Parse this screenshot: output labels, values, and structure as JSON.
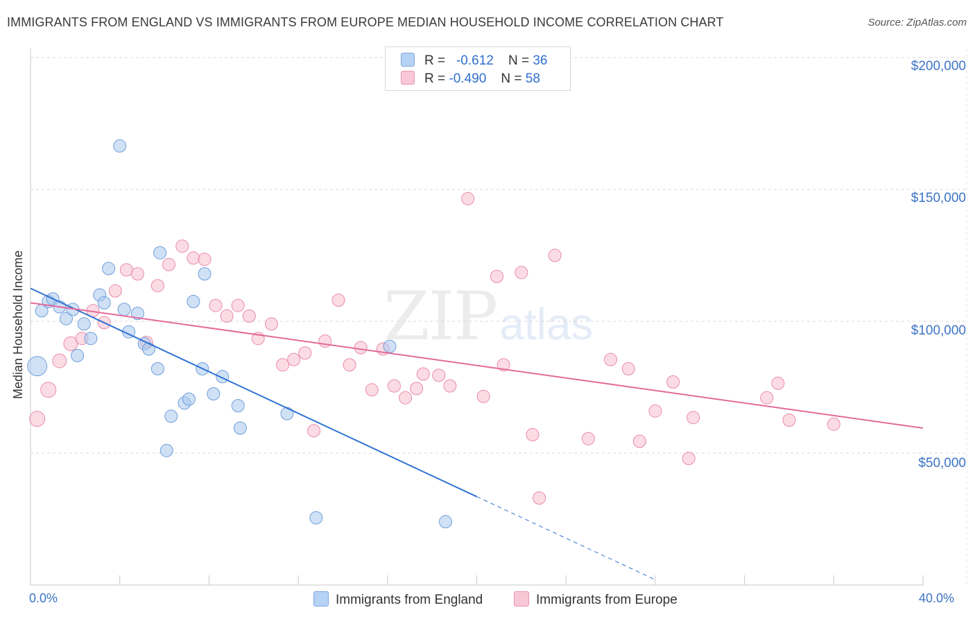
{
  "chart_data": {
    "type": "scatter",
    "title": "IMMIGRANTS FROM ENGLAND VS IMMIGRANTS FROM EUROPE MEDIAN HOUSEHOLD INCOME CORRELATION CHART",
    "source": "Source: ZipAtlas.com",
    "ylabel": "Median Household Income",
    "xlim": [
      0,
      40
    ],
    "ylim": [
      0,
      210000
    ],
    "x_ticks": [
      "0.0%",
      "40.0%"
    ],
    "y_ticks": [
      {
        "value": 50000,
        "label": "$50,000"
      },
      {
        "value": 100000,
        "label": "$100,000"
      },
      {
        "value": 150000,
        "label": "$150,000"
      },
      {
        "value": 200000,
        "label": "$200,000"
      }
    ],
    "watermark": {
      "zip": "ZIP",
      "atlas": "atlas"
    },
    "legend": [
      {
        "r_label": "R =",
        "r_value": "-0.612",
        "n_label": "N =",
        "n_value": "36"
      },
      {
        "r_label": "R =",
        "r_value": "-0.490",
        "n_label": "N =",
        "n_value": "58"
      }
    ],
    "series": [
      {
        "name": "Immigrants from England",
        "color": "#a9c8ef",
        "stroke": "#6f9ed9",
        "trend_color": "#2e72d2",
        "trend": {
          "x0": 0.0,
          "y0": 112500,
          "x1": 20.0,
          "y1": 33500,
          "dash_to_x": 28.0,
          "dash_to_y": 2000
        },
        "points": [
          [
            0.3,
            83000,
            14
          ],
          [
            0.5,
            104000,
            9
          ],
          [
            0.8,
            107500,
            9
          ],
          [
            1.0,
            108500,
            9
          ],
          [
            1.3,
            105500,
            9
          ],
          [
            1.6,
            101000,
            9
          ],
          [
            1.9,
            104500,
            9
          ],
          [
            2.1,
            87000,
            9
          ],
          [
            2.4,
            99000,
            9
          ],
          [
            2.7,
            93500,
            9
          ],
          [
            3.1,
            110000,
            9
          ],
          [
            3.3,
            107000,
            9
          ],
          [
            3.5,
            120000,
            9
          ],
          [
            4.0,
            166500,
            9
          ],
          [
            4.2,
            104500,
            9
          ],
          [
            4.4,
            96000,
            9
          ],
          [
            4.8,
            103000,
            9
          ],
          [
            5.1,
            91500,
            9
          ],
          [
            5.3,
            89500,
            9
          ],
          [
            5.7,
            82000,
            9
          ],
          [
            5.8,
            126000,
            9
          ],
          [
            6.1,
            51000,
            9
          ],
          [
            6.3,
            64000,
            9
          ],
          [
            6.9,
            69000,
            9
          ],
          [
            7.1,
            70500,
            9
          ],
          [
            7.3,
            107500,
            9
          ],
          [
            7.7,
            82000,
            9
          ],
          [
            7.8,
            118000,
            9
          ],
          [
            8.2,
            72500,
            9
          ],
          [
            8.6,
            79000,
            9
          ],
          [
            9.3,
            68000,
            9
          ],
          [
            9.4,
            59500,
            9
          ],
          [
            11.5,
            65000,
            9
          ],
          [
            12.8,
            25500,
            9
          ],
          [
            16.1,
            90500,
            9
          ],
          [
            18.6,
            24000,
            9
          ]
        ]
      },
      {
        "name": "Immigrants from Europe",
        "color": "#f7bfd0",
        "stroke": "#e98aaa",
        "trend_color": "#e4699a",
        "trend": {
          "x0": 0.0,
          "y0": 107000,
          "x1": 40.0,
          "y1": 59500
        },
        "points": [
          [
            0.3,
            63000,
            11
          ],
          [
            0.8,
            74000,
            11
          ],
          [
            1.3,
            85000,
            10
          ],
          [
            1.8,
            91500,
            10
          ],
          [
            2.3,
            93500,
            9
          ],
          [
            2.8,
            104000,
            9
          ],
          [
            3.3,
            99500,
            9
          ],
          [
            3.8,
            111500,
            9
          ],
          [
            4.3,
            119500,
            9
          ],
          [
            4.8,
            118000,
            9
          ],
          [
            5.2,
            92000,
            9
          ],
          [
            5.7,
            113500,
            9
          ],
          [
            6.2,
            121500,
            9
          ],
          [
            6.8,
            128500,
            9
          ],
          [
            7.3,
            124000,
            9
          ],
          [
            7.8,
            123500,
            9
          ],
          [
            8.3,
            106000,
            9
          ],
          [
            8.8,
            102000,
            9
          ],
          [
            9.3,
            106000,
            9
          ],
          [
            9.8,
            102000,
            9
          ],
          [
            10.2,
            93500,
            9
          ],
          [
            10.8,
            99000,
            9
          ],
          [
            11.3,
            83500,
            9
          ],
          [
            11.8,
            85500,
            9
          ],
          [
            12.3,
            88000,
            9
          ],
          [
            12.7,
            58500,
            9
          ],
          [
            13.2,
            92500,
            9
          ],
          [
            13.8,
            108000,
            9
          ],
          [
            14.3,
            83500,
            9
          ],
          [
            14.8,
            90000,
            9
          ],
          [
            15.3,
            74000,
            9
          ],
          [
            15.8,
            89500,
            9
          ],
          [
            16.3,
            75500,
            9
          ],
          [
            16.8,
            71000,
            9
          ],
          [
            17.3,
            74500,
            9
          ],
          [
            17.6,
            80000,
            9
          ],
          [
            18.3,
            79500,
            9
          ],
          [
            18.8,
            75500,
            9
          ],
          [
            19.6,
            146500,
            9
          ],
          [
            20.3,
            71500,
            9
          ],
          [
            20.9,
            117000,
            9
          ],
          [
            21.2,
            83500,
            9
          ],
          [
            22.0,
            118500,
            9
          ],
          [
            22.5,
            57000,
            9
          ],
          [
            22.8,
            33000,
            9
          ],
          [
            23.5,
            125000,
            9
          ],
          [
            25.0,
            55500,
            9
          ],
          [
            26.0,
            85500,
            9
          ],
          [
            26.8,
            82000,
            9
          ],
          [
            27.3,
            54500,
            9
          ],
          [
            28.0,
            66000,
            9
          ],
          [
            28.8,
            77000,
            9
          ],
          [
            29.5,
            48000,
            9
          ],
          [
            29.7,
            63500,
            9
          ],
          [
            33.0,
            71000,
            9
          ],
          [
            33.5,
            76500,
            9
          ],
          [
            34.0,
            62500,
            9
          ],
          [
            36.0,
            61000,
            9
          ]
        ]
      }
    ]
  }
}
